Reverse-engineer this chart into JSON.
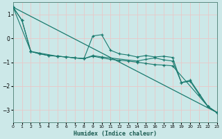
{
  "xlabel": "Humidex (Indice chaleur)",
  "background_color": "#cce8e8",
  "grid_color": "#e8c8c8",
  "line_color": "#1a7a6e",
  "xlim": [
    0,
    23
  ],
  "ylim": [
    -3.5,
    1.5
  ],
  "yticks": [
    1,
    0,
    -1,
    -2,
    -3
  ],
  "xticks": [
    0,
    1,
    2,
    3,
    4,
    5,
    6,
    7,
    8,
    9,
    10,
    11,
    12,
    13,
    14,
    15,
    16,
    17,
    18,
    19,
    20,
    21,
    22,
    23
  ],
  "trend_line": [
    [
      0,
      1.3
    ],
    [
      23,
      -3.1
    ]
  ],
  "series1": [
    [
      0,
      1.3
    ],
    [
      1,
      0.75
    ],
    [
      2,
      -0.55
    ],
    [
      3,
      -0.65
    ],
    [
      4,
      -0.72
    ],
    [
      5,
      -0.75
    ],
    [
      6,
      -0.78
    ],
    [
      7,
      -0.82
    ],
    [
      8,
      -0.85
    ],
    [
      9,
      0.1
    ],
    [
      10,
      0.15
    ],
    [
      11,
      -0.5
    ],
    [
      12,
      -0.65
    ],
    [
      13,
      -0.7
    ],
    [
      14,
      -0.78
    ],
    [
      15,
      -0.72
    ],
    [
      16,
      -0.78
    ],
    [
      17,
      -0.75
    ],
    [
      18,
      -0.8
    ],
    [
      19,
      -1.85
    ],
    [
      20,
      -1.8
    ],
    [
      21,
      -2.35
    ],
    [
      22,
      -2.85
    ],
    [
      23,
      -3.1
    ]
  ],
  "series2": [
    [
      0,
      1.3
    ],
    [
      1,
      0.75
    ],
    [
      2,
      -0.55
    ],
    [
      3,
      -0.65
    ],
    [
      4,
      -0.72
    ],
    [
      5,
      -0.75
    ],
    [
      6,
      -0.78
    ],
    [
      7,
      -0.82
    ],
    [
      8,
      -0.85
    ],
    [
      9,
      -0.75
    ],
    [
      10,
      -0.82
    ],
    [
      11,
      -0.88
    ],
    [
      12,
      -0.92
    ],
    [
      13,
      -0.95
    ],
    [
      14,
      -1.0
    ],
    [
      15,
      -1.05
    ],
    [
      16,
      -1.1
    ],
    [
      17,
      -1.12
    ],
    [
      18,
      -1.15
    ],
    [
      22,
      -2.85
    ],
    [
      23,
      -3.1
    ]
  ],
  "series3": [
    [
      0,
      1.3
    ],
    [
      2,
      -0.55
    ],
    [
      5,
      -0.75
    ],
    [
      8,
      -0.85
    ],
    [
      9,
      -0.72
    ],
    [
      10,
      -0.78
    ],
    [
      14,
      -0.95
    ],
    [
      15,
      -0.88
    ],
    [
      16,
      -0.82
    ],
    [
      17,
      -0.9
    ],
    [
      18,
      -0.95
    ],
    [
      19,
      -1.85
    ],
    [
      20,
      -1.75
    ],
    [
      22,
      -2.85
    ],
    [
      23,
      -3.1
    ]
  ]
}
